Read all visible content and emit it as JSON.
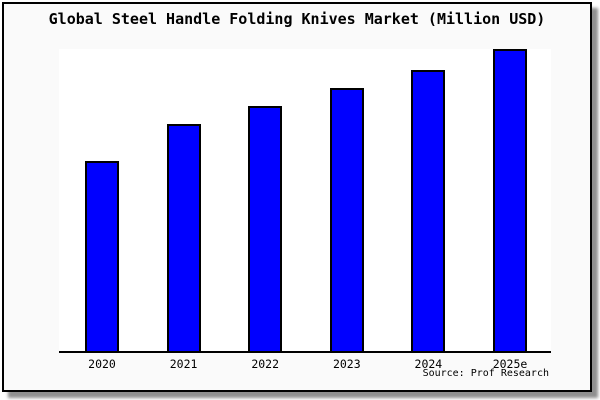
{
  "window": {
    "background_color": "#fafafa",
    "frame_border_color": "#000000",
    "shadow_color": "#8f8f8f",
    "plot_background_color": "#ffffff"
  },
  "chart": {
    "bar_color": "#0000ff",
    "bar_border_color": "#000000",
    "axis_color": "#000000"
  },
  "chart_data": {
    "type": "bar",
    "title": "Global Steel Handle Folding Knives Market (Million USD)",
    "categories": [
      "2020",
      "2021",
      "2022",
      "2023",
      "2024",
      "2025e"
    ],
    "values": [
      63,
      75,
      81,
      87,
      93,
      100
    ],
    "xlabel": "",
    "ylabel": "",
    "ylim": [
      0,
      100
    ],
    "grid": false,
    "legend": false,
    "value_scale_note": "No y-axis ticks or value labels are rendered in the image; values are relative bar heights normalized so the tallest bar (2025e) = 100.",
    "annotation": "Source: Prof Research"
  }
}
